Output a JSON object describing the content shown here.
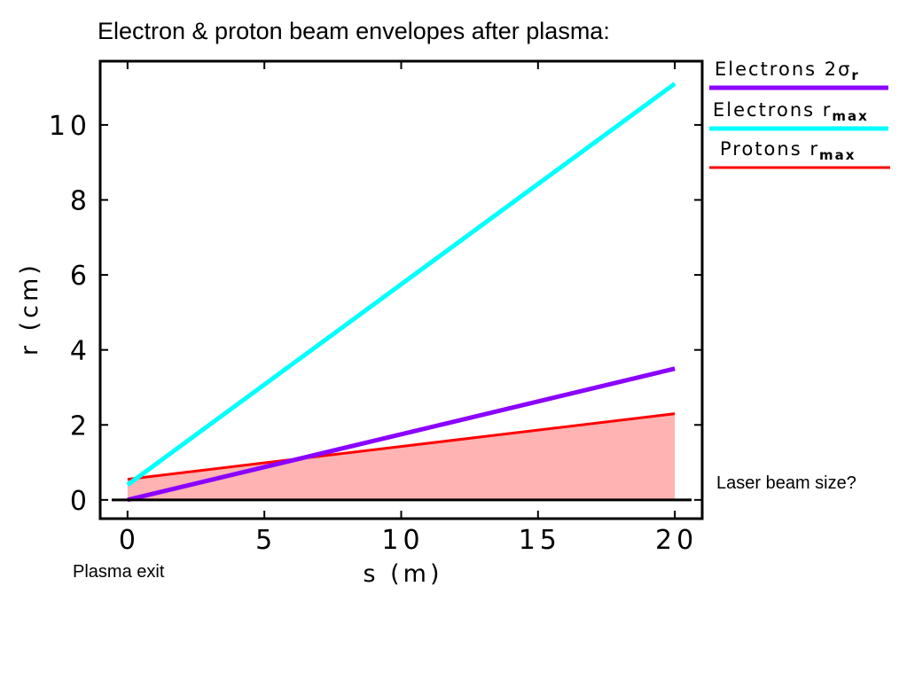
{
  "chart_data": {
    "type": "line",
    "title": "Electron & proton beam envelopes after plasma:",
    "xlabel": "s (m)",
    "ylabel": "r (cm)",
    "xlim": [
      -1,
      21
    ],
    "ylim": [
      -0.5,
      11.7
    ],
    "x_ticks": [
      0,
      5,
      10,
      15,
      20
    ],
    "x_tick_labels": [
      "0",
      "5",
      "10",
      "15",
      "20"
    ],
    "y_ticks": [
      0,
      2,
      4,
      6,
      8,
      10
    ],
    "y_tick_labels": [
      "0",
      "2",
      "4",
      "6",
      "8",
      "10"
    ],
    "grid": false,
    "legend_position": "right",
    "series": [
      {
        "name": "Electrons 2σr",
        "label_main": "Electrons 2σ",
        "label_sub": "r",
        "color": "#8b00ff",
        "x": [
          0,
          20
        ],
        "values": [
          0.0,
          3.5
        ]
      },
      {
        "name": "Electrons rmax",
        "label_main": "Electrons r",
        "label_sub": "max",
        "color": "#00ffff",
        "x": [
          0,
          20
        ],
        "values": [
          0.4,
          11.1
        ]
      },
      {
        "name": "Protons rmax",
        "label_main": "Protons r",
        "label_sub": "max",
        "color": "#ff0000",
        "fill_color": "#ffb3b3",
        "filled": true,
        "x": [
          0,
          20
        ],
        "values": [
          0.55,
          2.3
        ]
      }
    ],
    "annotations": [
      {
        "text": "Plasma exit"
      },
      {
        "text": "Laser beam size?"
      }
    ]
  }
}
